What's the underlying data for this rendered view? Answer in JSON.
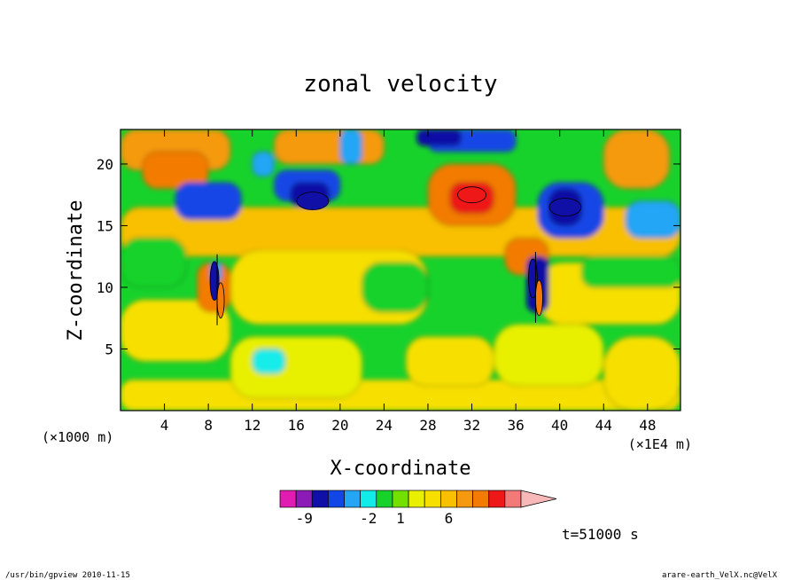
{
  "chart_data": {
    "type": "heatmap",
    "title": "zonal velocity",
    "xlabel": "X-coordinate",
    "ylabel": "Z-coordinate",
    "x_unit_left": "(×1000 m)",
    "x_unit_right": "(×1E4 m)",
    "xlim": [
      0,
      51
    ],
    "ylim": [
      0,
      22.8
    ],
    "x_ticks": [
      4,
      8,
      12,
      16,
      20,
      24,
      28,
      32,
      36,
      40,
      44,
      48
    ],
    "y_ticks": [
      5,
      10,
      15,
      20
    ],
    "colorbar": {
      "colors": [
        "#e11cb3",
        "#8b1ab6",
        "#1010a6",
        "#1246e6",
        "#24a6f5",
        "#12ece9",
        "#18d22c",
        "#74e000",
        "#e8f000",
        "#f7e000",
        "#f8c000",
        "#f59a10",
        "#f37b05",
        "#ee1818",
        "#f47a7a",
        "#f8b8b8"
      ],
      "tick_labels": [
        "-9",
        "-2",
        "1",
        "6"
      ],
      "tick_slots": [
        1.5,
        5.5,
        7.5,
        10.5
      ]
    },
    "time_label": "t=51000 s",
    "features": [
      {
        "x": 8.8,
        "z": 9.8,
        "kind": "dipole"
      },
      {
        "x": 37.8,
        "z": 10.0,
        "kind": "dipole"
      },
      {
        "x": 17.5,
        "z": 17.0,
        "kind": "negative-core"
      },
      {
        "x": 40.5,
        "z": 16.5,
        "kind": "negative-core"
      },
      {
        "x": 32.0,
        "z": 17.5,
        "kind": "positive-core"
      }
    ]
  },
  "footer": {
    "left": "/usr/bin/gpview   2010-11-15",
    "right": "arare-earth_VelX.nc@VelX"
  }
}
